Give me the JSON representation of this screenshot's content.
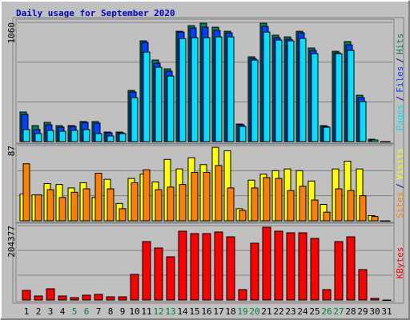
{
  "chart_data": {
    "type": "bar",
    "title": "Daily usage for September 2020",
    "categories": [
      "1",
      "2",
      "3",
      "4",
      "5",
      "6",
      "7",
      "8",
      "9",
      "10",
      "11",
      "12",
      "13",
      "14",
      "15",
      "16",
      "17",
      "18",
      "19",
      "20",
      "21",
      "22",
      "23",
      "24",
      "25",
      "26",
      "27",
      "28",
      "29",
      "30",
      "31"
    ],
    "category_colors": [
      "#000000",
      "#000000",
      "#000000",
      "#000000",
      "#008040",
      "#008040",
      "#000000",
      "#000000",
      "#000000",
      "#000000",
      "#000000",
      "#008040",
      "#008040",
      "#000000",
      "#000000",
      "#000000",
      "#000000",
      "#000000",
      "#008040",
      "#008040",
      "#000000",
      "#000000",
      "#000000",
      "#000000",
      "#000000",
      "#008040",
      "#008040",
      "#000000",
      "#000000",
      "#000000",
      "#000000"
    ],
    "separator": "/",
    "panels": [
      {
        "ylim": [
          0,
          1060
        ],
        "yticks": [
          1060
        ],
        "series": [
          {
            "name": "Hits",
            "color": "#00805c",
            "values": [
              263,
              142,
              171,
              142,
              142,
              178,
              178,
              85,
              85,
              455,
              896,
              725,
              647,
              981,
              1031,
              1052,
              1017,
              981,
              156,
              754,
              1052,
              946,
              931,
              981,
              832,
              142,
              803,
              889,
              412,
              21,
              0
            ]
          },
          {
            "name": "Files",
            "color": "#0040ff",
            "values": [
              242,
              107,
              149,
              128,
              135,
              171,
              164,
              78,
              78,
              441,
              882,
              697,
              626,
              974,
              1010,
              1017,
              988,
              967,
              149,
              739,
              1024,
              924,
              910,
              967,
              811,
              135,
              789,
              860,
              391,
              14,
              0
            ]
          },
          {
            "name": "Pages",
            "color": "#00e0ff",
            "values": [
              107,
              71,
              100,
              92,
              100,
              107,
              71,
              50,
              71,
              391,
              796,
              661,
              583,
              917,
              924,
              924,
              931,
              931,
              135,
              725,
              974,
              903,
              896,
              917,
              782,
              128,
              782,
              811,
              356,
              14,
              0
            ]
          }
        ]
      },
      {
        "ylim": [
          0,
          87
        ],
        "yticks": [
          87
        ],
        "series": [
          {
            "name": "Visits",
            "color": "#ffff00",
            "values": [
              31,
              30,
              43,
              42,
              38,
              44,
              27,
              48,
              20,
              49,
              54,
              45,
              71,
              60,
              73,
              65,
              85,
              81,
              14,
              47,
              54,
              58,
              60,
              58,
              46,
              19,
              60,
              69,
              60,
              6,
              0
            ]
          },
          {
            "name": "Sites",
            "color": "#ff8000",
            "values": [
              66,
              30,
              36,
              27,
              33,
              37,
              55,
              37,
              14,
              44,
              59,
              36,
              39,
              42,
              56,
              56,
              64,
              38,
              12,
              38,
              50,
              49,
              35,
              40,
              24,
              10,
              37,
              35,
              29,
              5,
              0
            ]
          }
        ]
      },
      {
        "ylim": [
          0,
          204377
        ],
        "yticks": [
          204377
        ],
        "series": [
          {
            "name": "KBytes",
            "color": "#ff0000",
            "values": [
              26400,
              11000,
              30800,
              11000,
              6600,
              13200,
              15400,
              8800,
              8800,
              70300,
              160400,
              142800,
              118700,
              189000,
              182400,
              182400,
              186800,
              173600,
              28600,
              156000,
              200000,
              189000,
              184600,
              184600,
              169200,
              28600,
              160400,
              173600,
              83500,
              4400,
              0
            ]
          }
        ]
      }
    ]
  }
}
